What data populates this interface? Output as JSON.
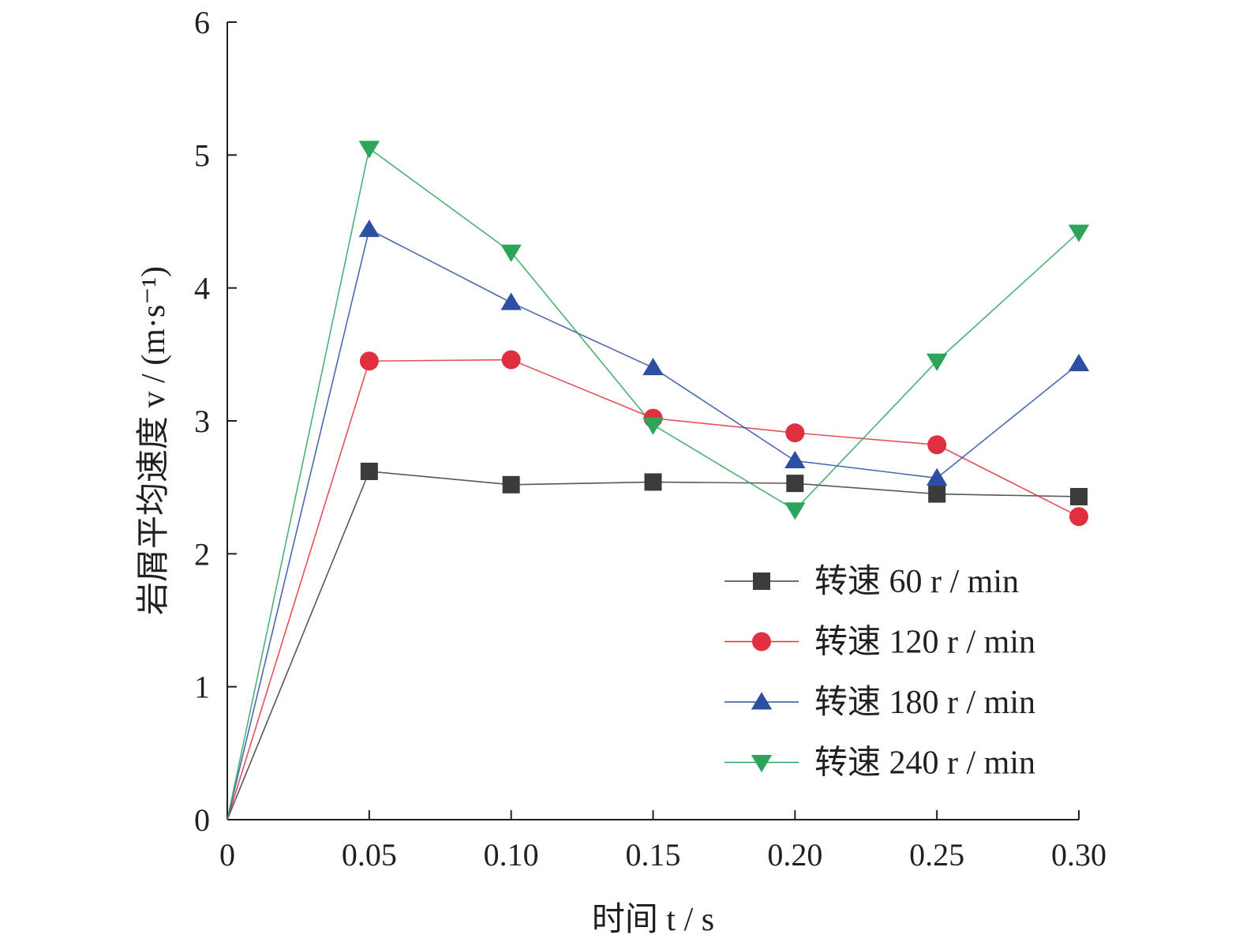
{
  "chart_data": {
    "type": "line",
    "xlabel": "时间 t / s",
    "ylabel": "岩屑平均速度 v / (m·s⁻¹)",
    "xlim": [
      0,
      0.3
    ],
    "ylim": [
      0,
      6
    ],
    "x_ticks": [
      "0",
      "0.05",
      "0.10",
      "0.15",
      "0.20",
      "0.25",
      "0.30"
    ],
    "y_ticks": [
      "0",
      "1",
      "2",
      "3",
      "4",
      "5",
      "6"
    ],
    "x": [
      0,
      0.05,
      0.1,
      0.15,
      0.2,
      0.25,
      0.3
    ],
    "grid": false,
    "legend_position": "bottom-right",
    "series": [
      {
        "name": "转速 60 r / min",
        "color": "#3b3b3b",
        "marker": "square",
        "values": [
          0,
          2.62,
          2.52,
          2.54,
          2.53,
          2.45,
          2.43
        ]
      },
      {
        "name": "转速 120 r / min",
        "color": "#e0303f",
        "marker": "circle",
        "values": [
          0,
          3.45,
          3.46,
          3.02,
          2.91,
          2.82,
          2.28
        ]
      },
      {
        "name": "转速 180 r / min",
        "color": "#2c4fa3",
        "marker": "triangle-up",
        "values": [
          0,
          4.44,
          3.89,
          3.4,
          2.7,
          2.57,
          3.43
        ]
      },
      {
        "name": "转速 240 r / min",
        "color": "#2ea35a",
        "marker": "triangle-down",
        "values": [
          0,
          5.05,
          4.27,
          2.97,
          2.33,
          3.45,
          4.42
        ]
      }
    ]
  }
}
